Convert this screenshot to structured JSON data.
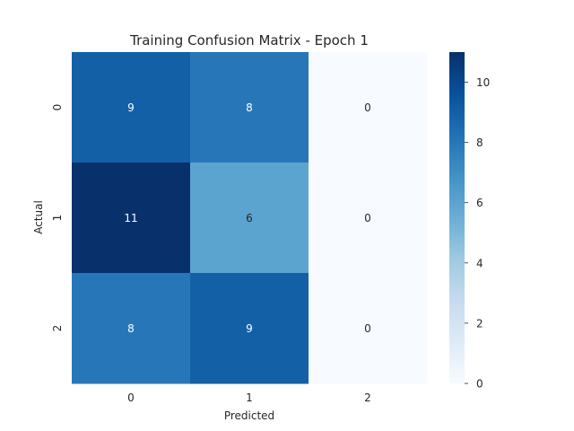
{
  "chart_data": {
    "type": "heatmap",
    "title": "Training Confusion Matrix - Epoch 1",
    "xlabel": "Predicted",
    "ylabel": "Actual",
    "x_categories": [
      "0",
      "1",
      "2"
    ],
    "y_categories": [
      "0",
      "1",
      "2"
    ],
    "values": [
      [
        9,
        8,
        0
      ],
      [
        11,
        6,
        0
      ],
      [
        8,
        9,
        0
      ]
    ],
    "color_range": [
      0,
      11
    ],
    "colormap": "Blues",
    "colorbar_ticks": [
      "0",
      "2",
      "4",
      "6",
      "8",
      "10"
    ],
    "annotation_colors": {
      "dark_cell": "#ffffff",
      "light_cell": "#262626"
    }
  }
}
